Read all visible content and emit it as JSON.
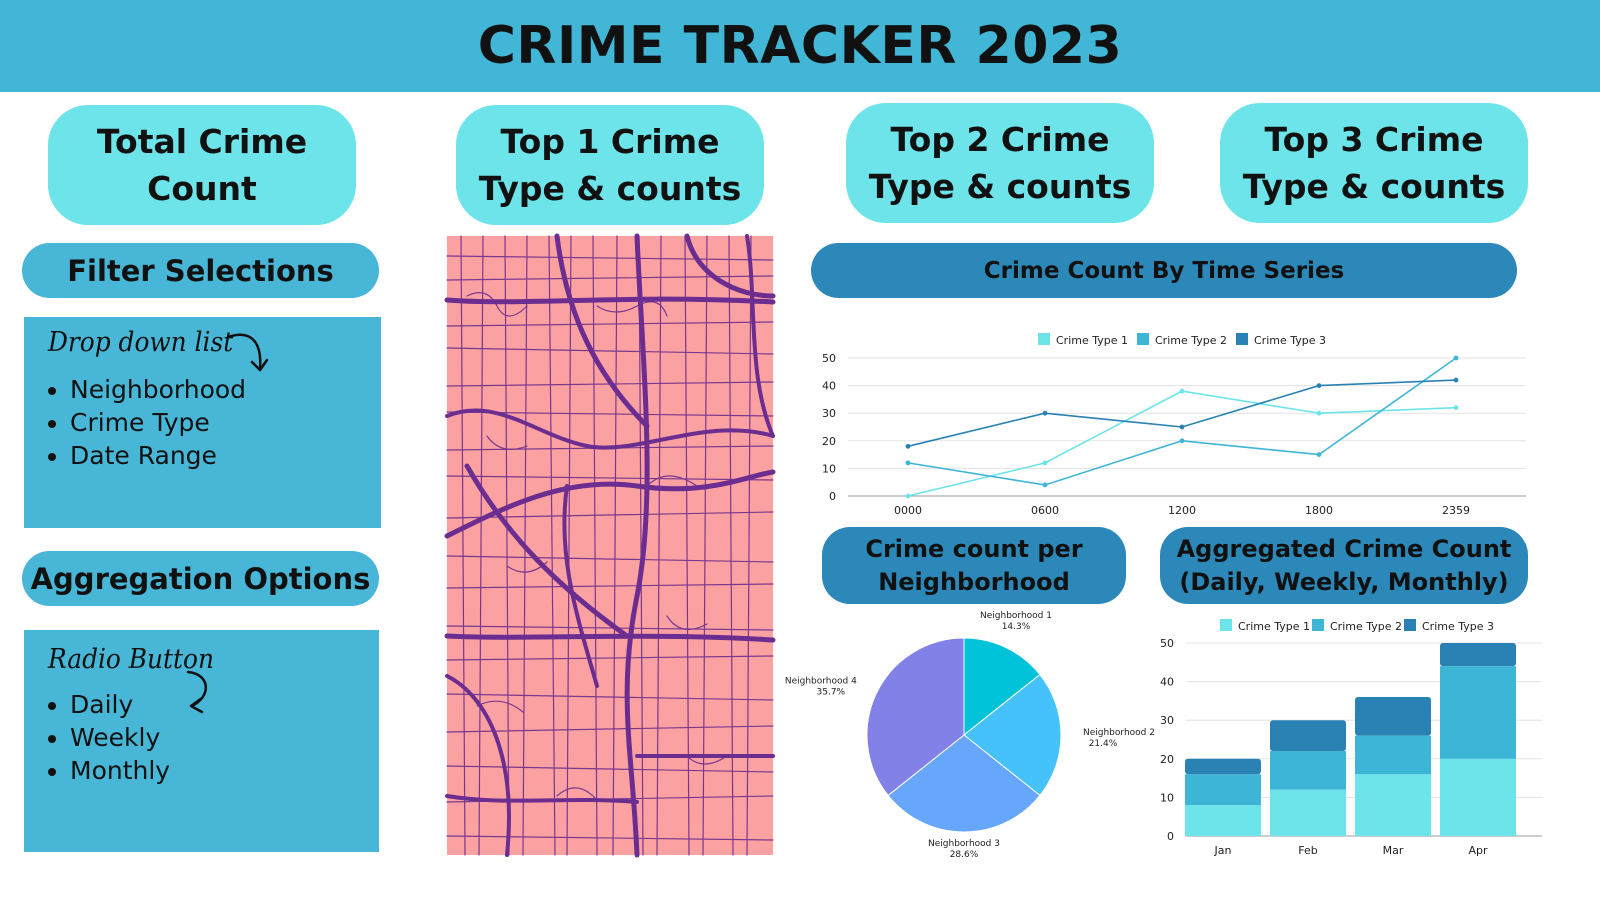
{
  "header": {
    "title": "CRIME TRACKER 2023"
  },
  "kpis": {
    "total": "Total Crime Count",
    "top1": "Top 1 Crime Type & counts",
    "top2": "Top 2 Crime Type & counts",
    "top3": "Top 3 Crime Type & counts"
  },
  "filters": {
    "title": "Filter Selections",
    "control": "Drop down list",
    "items": [
      "Neighborhood",
      "Crime Type",
      "Date Range"
    ]
  },
  "aggregation": {
    "title": "Aggregation Options",
    "control": "Radio Button",
    "items": [
      "Daily",
      "Weekly",
      "Monthly"
    ]
  },
  "sections": {
    "time_series": "Crime Count By Time Series",
    "neighborhood_line1": "Crime count per",
    "neighborhood_line2": "Neighborhood",
    "aggregated_line1": "Aggregated Crime Count",
    "aggregated_line2": "(Daily, Weekly, Monthly)"
  },
  "colors": {
    "type1": "#6ce4ea",
    "type2": "#3db5d6",
    "type3": "#2a82b4",
    "header": "#42b6d7",
    "map_bg": "#fca1a1",
    "map_road": "#6b2d8f"
  },
  "chart_data": [
    {
      "type": "line",
      "title": "Crime Count By Time Series",
      "categories": [
        "0000",
        "0600",
        "1200",
        "1800",
        "2359"
      ],
      "ylim": [
        0,
        50
      ],
      "yticks": [
        0,
        10,
        20,
        30,
        40,
        50
      ],
      "legend": "top",
      "series": [
        {
          "name": "Crime Type 1",
          "values": [
            0,
            12,
            38,
            30,
            32
          ]
        },
        {
          "name": "Crime Type 2",
          "values": [
            12,
            4,
            20,
            15,
            50
          ]
        },
        {
          "name": "Crime Type 3",
          "values": [
            18,
            30,
            25,
            40,
            42
          ]
        }
      ]
    },
    {
      "type": "pie",
      "title": "Crime count per Neighborhood",
      "labels": [
        "Neighborhood 1",
        "Neighborhood 2",
        "Neighborhood 3",
        "Neighborhood 4"
      ],
      "values": [
        14.3,
        21.4,
        28.6,
        35.7
      ],
      "display": [
        "14.3%",
        "21.4%",
        "28.6%",
        "35.7%"
      ],
      "colors": [
        "#00c2d9",
        "#45c2fb",
        "#66a6fb",
        "#8181e8"
      ]
    },
    {
      "type": "bar",
      "stacked": true,
      "title": "Aggregated Crime Count (Daily, Weekly, Monthly)",
      "categories": [
        "Jan",
        "Feb",
        "Mar",
        "Apr"
      ],
      "ylim": [
        0,
        50
      ],
      "yticks": [
        0,
        10,
        20,
        30,
        40,
        50
      ],
      "legend": "top",
      "series": [
        {
          "name": "Crime Type 1",
          "values": [
            8,
            12,
            16,
            20
          ]
        },
        {
          "name": "Crime Type 2",
          "values": [
            8,
            10,
            10,
            24
          ]
        },
        {
          "name": "Crime Type 3",
          "values": [
            4,
            8,
            10,
            6
          ]
        }
      ]
    }
  ]
}
